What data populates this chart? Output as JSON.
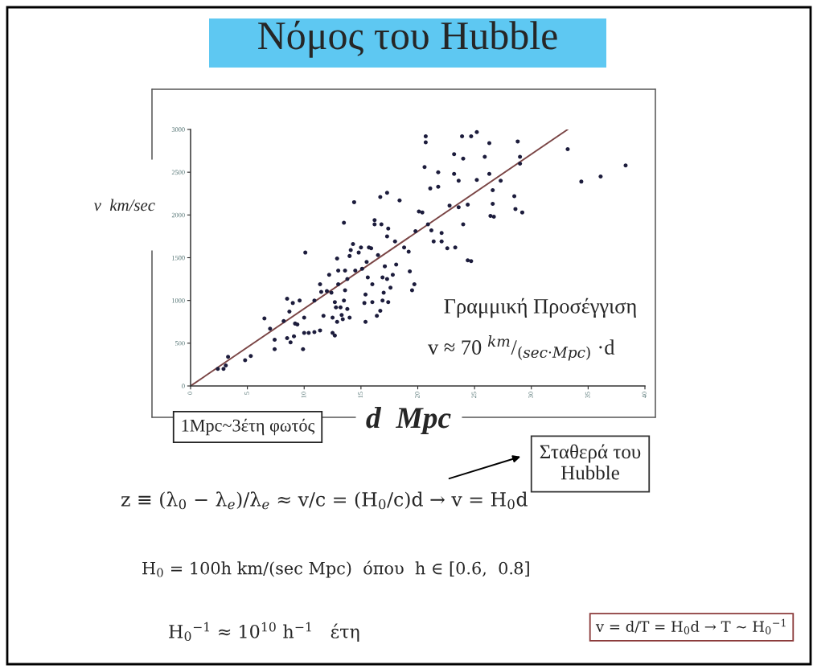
{
  "chart_data": {
    "type": "scatter",
    "title": "Νόμος του Hubble",
    "xlabel": "d  Mpc",
    "ylabel": "v  km/sec",
    "xlim": [
      0,
      40
    ],
    "ylim": [
      0,
      3000
    ],
    "xticks": [
      0,
      5,
      10,
      15,
      20,
      25,
      30,
      35,
      40
    ],
    "yticks": [
      0,
      500,
      1000,
      1500,
      2000,
      2500,
      3000
    ],
    "grid": false,
    "series": [
      {
        "color": "#1c1c3c",
        "marker": "circle",
        "x": [
          2.4,
          2.9,
          3.1,
          3.3,
          4.8,
          5.3,
          6.5,
          7.0,
          7.4,
          7.4,
          8.2,
          8.5,
          8.7,
          8.5,
          8.8,
          9.0,
          9.2,
          9.4,
          9.1,
          9.6,
          9.9,
          10.0,
          10.1,
          10.0,
          10.4,
          10.9,
          10.9,
          11.4,
          11.4,
          11.5,
          11.7,
          12.0,
          12.2,
          12.4,
          12.5,
          12.5,
          12.7,
          12.9,
          13.0,
          12.7,
          12.8,
          12.9,
          13.0,
          13.2,
          13.3,
          13.4,
          13.5,
          13.6,
          13.5,
          13.6,
          13.8,
          13.8,
          14.0,
          14.0,
          14.1,
          14.3,
          14.4,
          14.5,
          14.8,
          15.0,
          15.1,
          15.3,
          15.4,
          15.4,
          15.5,
          15.6,
          15.7,
          15.9,
          16.0,
          16.0,
          16.2,
          16.2,
          16.4,
          16.5,
          16.7,
          16.7,
          16.8,
          16.9,
          16.9,
          17.0,
          17.1,
          17.3,
          17.4,
          17.3,
          17.3,
          17.4,
          17.6,
          17.8,
          18.0,
          18.1,
          18.4,
          18.8,
          19.2,
          19.3,
          19.5,
          19.7,
          19.8,
          20.1,
          20.4,
          20.6,
          20.7,
          20.7,
          20.9,
          21.1,
          21.2,
          21.4,
          21.8,
          21.8,
          22.1,
          22.1,
          22.6,
          22.8,
          23.2,
          23.2,
          23.3,
          23.6,
          23.6,
          23.9,
          24.0,
          24.0,
          24.4,
          24.4,
          24.7,
          24.7,
          25.2,
          25.2,
          25.9,
          26.3,
          26.3,
          26.4,
          26.7,
          26.6,
          26.6,
          27.3,
          28.5,
          28.6,
          28.8,
          29.0,
          29.0,
          29.2,
          33.2,
          34.4,
          36.1,
          38.3
        ],
        "values": [
          200,
          200,
          240,
          340,
          300,
          350,
          790,
          670,
          540,
          430,
          760,
          1020,
          870,
          560,
          510,
          970,
          730,
          720,
          580,
          1000,
          430,
          800,
          1560,
          620,
          620,
          1000,
          630,
          650,
          1190,
          1100,
          820,
          1110,
          1300,
          1090,
          800,
          620,
          590,
          1490,
          1350,
          980,
          920,
          750,
          1190,
          920,
          830,
          780,
          1910,
          1350,
          1000,
          1120,
          900,
          1250,
          1520,
          800,
          1590,
          1660,
          2150,
          1350,
          1560,
          1620,
          1370,
          970,
          750,
          1070,
          1450,
          1270,
          1620,
          1610,
          1190,
          980,
          1940,
          1890,
          820,
          1530,
          880,
          2210,
          1890,
          1270,
          1000,
          1090,
          1400,
          2260,
          1840,
          1750,
          1250,
          980,
          1150,
          1300,
          1690,
          1420,
          2170,
          1620,
          1570,
          1340,
          1120,
          1190,
          1810,
          2040,
          2030,
          2560,
          2920,
          2850,
          1890,
          2310,
          1820,
          1690,
          2330,
          2500,
          1790,
          1690,
          1610,
          2110,
          2710,
          2480,
          1620,
          2400,
          2090,
          2920,
          2660,
          1890,
          2120,
          1470,
          2920,
          1460,
          2410,
          2970,
          2680,
          2840,
          2480,
          1990,
          1980,
          2290,
          2130,
          2400,
          2220,
          2070,
          2860,
          2680,
          2600,
          2030,
          2770,
          2390,
          2450,
          2580
        ]
      },
      {
        "type": "line",
        "color": "#7b4646",
        "marker": "none",
        "x": [
          0,
          33.2
        ],
        "values": [
          0,
          3000
        ]
      }
    ],
    "annotations": [
      "1Mpc~3έτη φωτός",
      "Γραμμική Προσέγγιση",
      "v ≈ 70 $^{km}$/$_{(sec·Mpc)}$ ·d",
      "Σταθερά του\nHubble",
      "z ≡ (λ$_{0}$ − λ$_{e}$)/λ$_{e}$ ≈ v/c = (H$_{0}$/c)d → v = H$_{0}$d",
      "H$_{0}$ = 100h km/(sec Mpc)  όπου  h ∈ [0.6,  0.8]",
      "H$_{0}$$^{−1}$ ≈ 10$^{10}$ h$^{−1}$   έτη",
      "v = d/T = H$_{0}$d → T ~ H$_{0}$$^{−1}$"
    ]
  }
}
